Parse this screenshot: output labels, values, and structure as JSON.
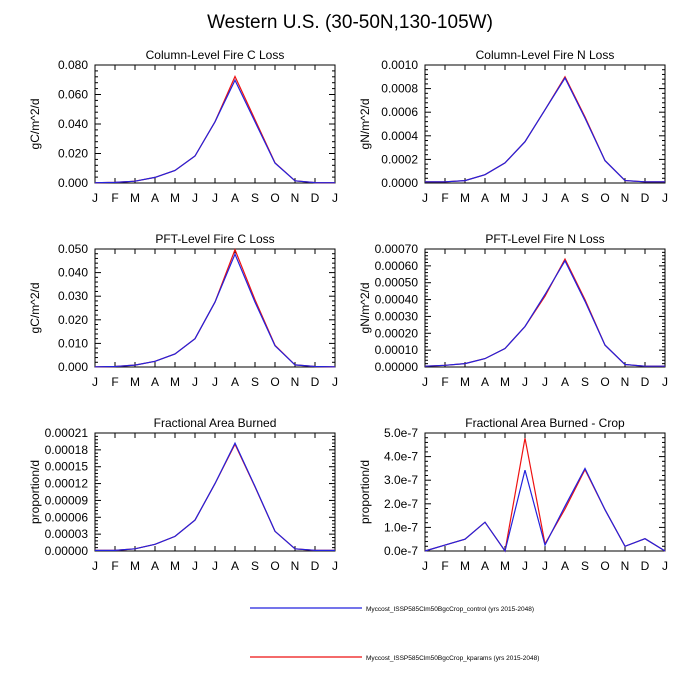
{
  "title": "Western U.S. (30-50N,130-105W)",
  "months": [
    "J",
    "F",
    "M",
    "A",
    "M",
    "J",
    "J",
    "A",
    "S",
    "O",
    "N",
    "D",
    "J"
  ],
  "legend": [
    {
      "label": "Myccost_ISSP585Clm50BgcCrop_control (yrs 2015-2048)",
      "color": "#2222dd"
    },
    {
      "label": "Myccost_ISSP585Clm50BgcCrop_kparams (yrs 2015-2048)",
      "color": "#ee1111"
    }
  ],
  "chart_data": [
    {
      "type": "line",
      "title": "Column-Level Fire C Loss",
      "ylabel": "gC/m^2/d",
      "ylim": [
        0,
        0.08
      ],
      "yticks": [
        "0.000",
        "0.020",
        "0.040",
        "0.060",
        "0.080"
      ],
      "series": [
        {
          "name": "Myccost_ISSP585Clm50BgcCrop_control (yrs 2015-2048)",
          "values": [
            0.0002,
            0.0004,
            0.0012,
            0.0038,
            0.0085,
            0.0183,
            0.0415,
            0.0697,
            0.0415,
            0.0135,
            0.0015,
            0.0003,
            0.0002
          ]
        },
        {
          "name": "Myccost_ISSP585Clm50BgcCrop_kparams (yrs 2015-2048)",
          "values": [
            0.0002,
            0.0004,
            0.0012,
            0.0038,
            0.0085,
            0.0183,
            0.0415,
            0.0722,
            0.043,
            0.0137,
            0.0015,
            0.0003,
            0.0002
          ]
        }
      ]
    },
    {
      "type": "line",
      "title": "Column-Level Fire N Loss",
      "ylabel": "gN/m^2/d",
      "ylim": [
        0,
        0.001
      ],
      "yticks": [
        "0.0000",
        "0.0002",
        "0.0004",
        "0.0006",
        "0.0008",
        "0.0010"
      ],
      "series": [
        {
          "name": "Myccost_ISSP585Clm50BgcCrop_control (yrs 2015-2048)",
          "values": [
            1e-05,
            1e-05,
            2e-05,
            7e-05,
            0.00017,
            0.00035,
            0.00062,
            0.00089,
            0.00055,
            0.00019,
            2e-05,
            1e-05,
            1e-05
          ]
        },
        {
          "name": "Myccost_ISSP585Clm50BgcCrop_kparams (yrs 2015-2048)",
          "values": [
            1e-05,
            1e-05,
            2e-05,
            7e-05,
            0.00017,
            0.00035,
            0.00062,
            0.0009,
            0.00056,
            0.00019,
            2e-05,
            1e-05,
            1e-05
          ]
        }
      ]
    },
    {
      "type": "line",
      "title": "PFT-Level Fire C Loss",
      "ylabel": "gC/m^2/d",
      "ylim": [
        0,
        0.05
      ],
      "yticks": [
        "0.000",
        "0.010",
        "0.020",
        "0.030",
        "0.040",
        "0.050"
      ],
      "series": [
        {
          "name": "Myccost_ISSP585Clm50BgcCrop_control (yrs 2015-2048)",
          "values": [
            0.0001,
            0.0002,
            0.0008,
            0.0024,
            0.0055,
            0.012,
            0.0275,
            0.0478,
            0.0275,
            0.009,
            0.0009,
            0.0002,
            0.0001
          ]
        },
        {
          "name": "Myccost_ISSP585Clm50BgcCrop_kparams (yrs 2015-2048)",
          "values": [
            0.0001,
            0.0002,
            0.0008,
            0.0024,
            0.0055,
            0.012,
            0.0275,
            0.0497,
            0.0285,
            0.0092,
            0.0009,
            0.0002,
            0.0001
          ]
        }
      ]
    },
    {
      "type": "line",
      "title": "PFT-Level Fire N Loss",
      "ylabel": "gN/m^2/d",
      "ylim": [
        0,
        0.0007
      ],
      "yticks": [
        "0.00000",
        "0.00010",
        "0.00020",
        "0.00030",
        "0.00040",
        "0.00050",
        "0.00060",
        "0.00070"
      ],
      "series": [
        {
          "name": "Myccost_ISSP585Clm50BgcCrop_control (yrs 2015-2048)",
          "values": [
            5e-06,
            1e-05,
            2e-05,
            5e-05,
            0.00011,
            0.00024,
            0.00043,
            0.00063,
            0.00039,
            0.00013,
            1.5e-05,
            5e-06,
            5e-06
          ]
        },
        {
          "name": "Myccost_ISSP585Clm50BgcCrop_kparams (yrs 2015-2048)",
          "values": [
            5e-06,
            1e-05,
            2e-05,
            5e-05,
            0.00011,
            0.00024,
            0.00042,
            0.00064,
            0.0004,
            0.00013,
            1.5e-05,
            5e-06,
            5e-06
          ]
        }
      ]
    },
    {
      "type": "line",
      "title": "Fractional Area Burned",
      "ylabel": "proportion/d",
      "ylim": [
        0,
        0.00021
      ],
      "yticks": [
        "0.00000",
        "0.00003",
        "0.00006",
        "0.00009",
        "0.00012",
        "0.00015",
        "0.00018",
        "0.00021"
      ],
      "series": [
        {
          "name": "Myccost_ISSP585Clm50BgcCrop_control (yrs 2015-2048)",
          "values": [
            1e-06,
            1e-06,
            4e-06,
            1.2e-05,
            2.6e-05,
            5.5e-05,
            0.00012,
            0.000192,
            0.000115,
            3.5e-05,
            4e-06,
            1e-06,
            1e-06
          ]
        },
        {
          "name": "Myccost_ISSP585Clm50BgcCrop_kparams (yrs 2015-2048)",
          "values": [
            1e-06,
            1e-06,
            4e-06,
            1.2e-05,
            2.6e-05,
            5.5e-05,
            0.00012,
            0.00019,
            0.000114,
            3.5e-05,
            4e-06,
            1e-06,
            1e-06
          ]
        }
      ]
    },
    {
      "type": "line",
      "title": "Fractional Area Burned - Crop",
      "ylabel": "proportion/d",
      "ylim": [
        0,
        5e-07
      ],
      "yticks": [
        "0.0e-7",
        "1.0e-7",
        "2.0e-7",
        "3.0e-7",
        "4.0e-7",
        "5.0e-7"
      ],
      "series": [
        {
          "name": "Myccost_ISSP585Clm50BgcCrop_control (yrs 2015-2048)",
          "values": [
            0.0,
            2.5e-08,
            5e-08,
            1.22e-07,
            0.0,
            3.43e-07,
            2.5e-08,
            1.9e-07,
            3.5e-07,
            1.75e-07,
            2e-08,
            5.2e-08,
            0.0
          ]
        },
        {
          "name": "Myccost_ISSP585Clm50BgcCrop_kparams (yrs 2015-2048)",
          "values": [
            0.0,
            2.5e-08,
            5e-08,
            1.22e-07,
            0.0,
            4.78e-07,
            3e-08,
            1.78e-07,
            3.45e-07,
            1.75e-07,
            2e-08,
            5.2e-08,
            0.0
          ]
        }
      ]
    }
  ]
}
